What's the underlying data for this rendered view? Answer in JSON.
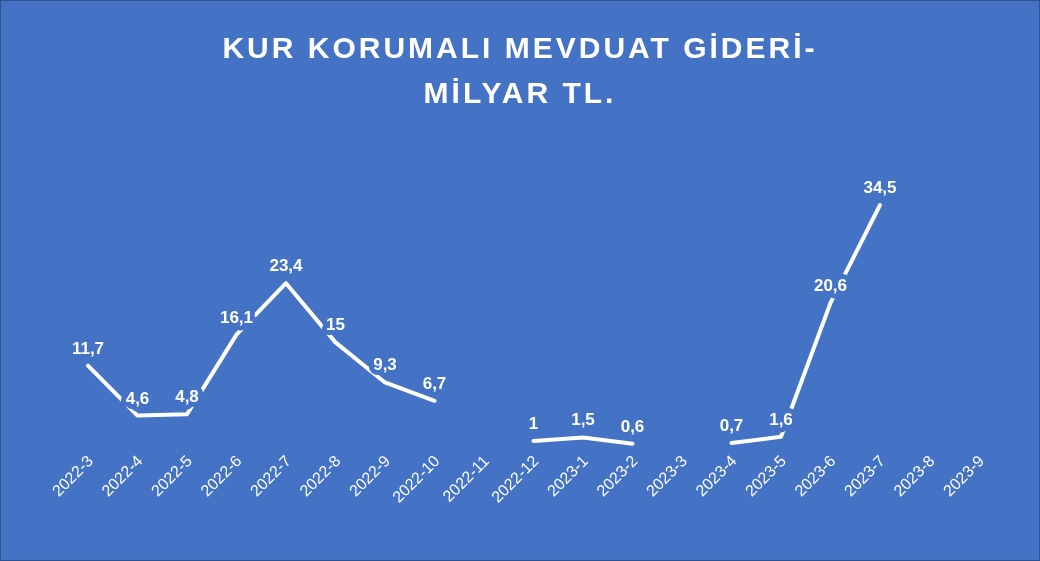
{
  "chart_data": {
    "type": "line",
    "title": "KUR KORUMALI MEVDUAT GİDERİ-\nMİLYAR TL.",
    "categories": [
      "2022-3",
      "2022-4",
      "2022-5",
      "2022-6",
      "2022-7",
      "2022-8",
      "2022-9",
      "2022-10",
      "2022-11",
      "2022-12",
      "2023-1",
      "2023-2",
      "2023-3",
      "2023-4",
      "2023-5",
      "2023-6",
      "2023-7",
      "2023-8",
      "2023-9"
    ],
    "series": [
      {
        "color": "#ffffff",
        "values": [
          11.7,
          4.6,
          4.8,
          16.1,
          23.4,
          15,
          9.3,
          6.7,
          null,
          1,
          1.5,
          0.6,
          null,
          0.7,
          1.6,
          20.6,
          34.5,
          null,
          null
        ],
        "value_labels": [
          "11,7",
          "4,6",
          "4,8",
          "16,1",
          "23,4",
          "15",
          "9,3",
          "6,7",
          null,
          "1",
          "1,5",
          "0,6",
          null,
          "0,7",
          "1,6",
          "20,6",
          "34,5",
          null,
          null
        ]
      }
    ],
    "tick_labels": "x",
    "marker": "none",
    "line_style": "solid"
  }
}
